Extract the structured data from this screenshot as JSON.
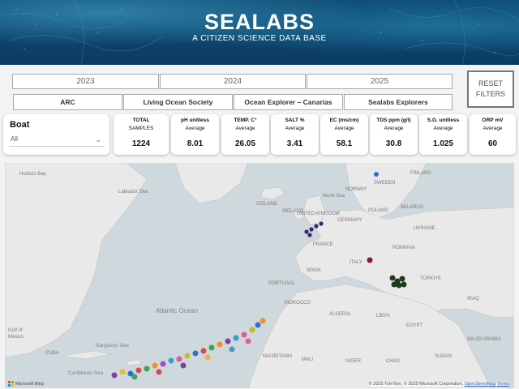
{
  "header": {
    "logo": "SEALABS",
    "tagline": "A CITIZEN SCIENCE DATA BASE"
  },
  "filters": {
    "years": [
      "2023",
      "2024",
      "2025"
    ],
    "orgs": [
      "ARC",
      "Living Ocean Society",
      "Ocean Explorer – Canarias",
      "Sealabs Explorers"
    ],
    "reset": [
      "RESET",
      "FILTERS"
    ]
  },
  "boat": {
    "label": "Boat",
    "value": "All"
  },
  "kpis": [
    {
      "title": "TOTAL",
      "sub": "SAMPLES",
      "value": "1224"
    },
    {
      "title": "pH unitless",
      "sub": "Average",
      "value": "8.01"
    },
    {
      "title": "TEMP. C°",
      "sub": "Average",
      "value": "26.05"
    },
    {
      "title": "SALT %",
      "sub": "Average",
      "value": "3.41"
    },
    {
      "title": "EC (ms/cm)",
      "sub": "Average",
      "value": "58.1"
    },
    {
      "title": "TDS ppm (g/l)",
      "sub": "Average",
      "value": "30.8"
    },
    {
      "title": "S.G. unitless",
      "sub": "Average",
      "value": "1.025"
    },
    {
      "title": "ORP mV",
      "sub": "Average",
      "value": "60"
    }
  ],
  "map": {
    "labels": {
      "hudson": "Hudson Bay",
      "labrador": "Labrador Sea",
      "iceland": "ICELAND",
      "norway": "NORWAY",
      "sweden": "SWEDEN",
      "finland": "FINLAND",
      "northsea": "North Sea",
      "uk": "UNITED KINGDOM",
      "ireland": "IRELAND",
      "poland": "POLAND",
      "germany": "GERMANY",
      "belarus": "BELARUS",
      "ukraine": "UKRAINE",
      "france": "FRANCE",
      "italy": "ITALY",
      "spain": "SPAIN",
      "portugal": "PORTUGAL",
      "romania": "ROMANIA",
      "turkiye": "TÜRKIYE",
      "morocco": "MOROCCO",
      "algeria": "ALGERIA",
      "libya": "LIBYA",
      "egypt": "EGYPT",
      "mauritania": "MAURITANIA",
      "mali": "MALI",
      "niger": "NIGER",
      "chad": "CHAD",
      "sudan": "SUDAN",
      "saudi": "SAUDI ARABIA",
      "iraq": "IRAQ",
      "gulf": "Gulf of",
      "mexico": "Mexico",
      "cuba": "CUBA"
    },
    "oceans": {
      "atlantic": "Atlantic Ocean",
      "sargasso": "Sargasso Sea",
      "caribbean": "Caribbean Sea"
    },
    "attribution": "© 2025 TomTom, © 2025 Microsoft Corporation,",
    "osm": "OpenStreetMap",
    "terms": "Terms",
    "bing": "Microsoft Bing"
  },
  "colors": {
    "header": "#0f4d78",
    "map_water": "#cfd8dc",
    "map_land": "#e9e9e9"
  }
}
